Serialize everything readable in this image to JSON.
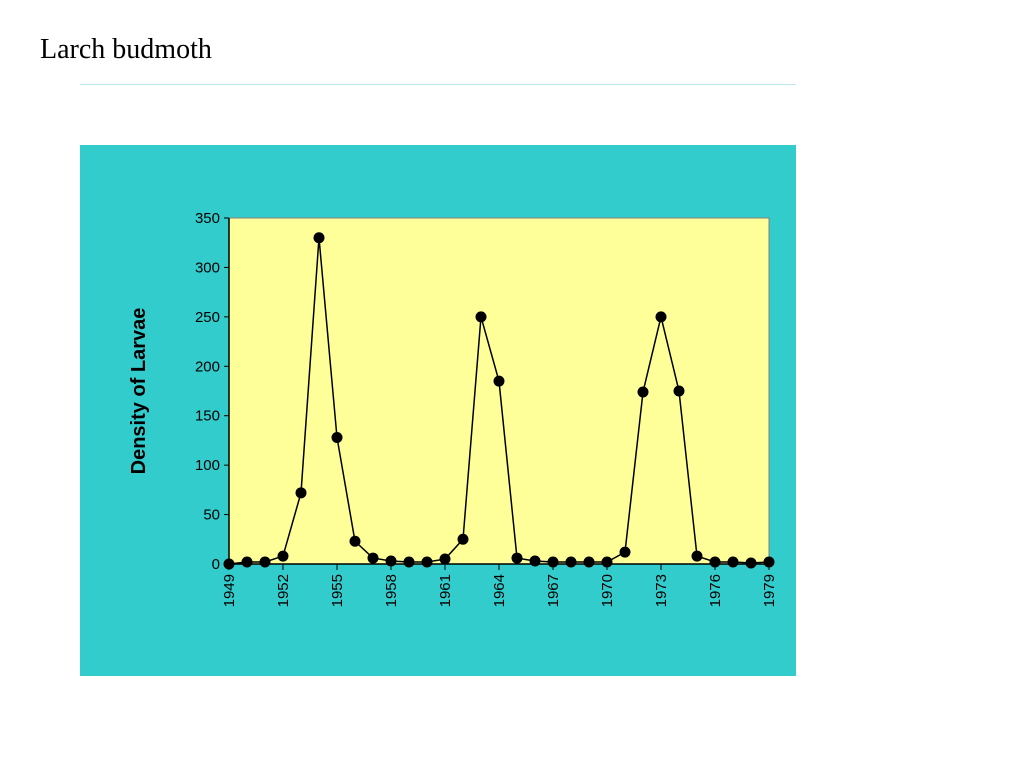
{
  "chart_data": {
    "type": "line",
    "title": "Larch budmoth",
    "ylabel": "Density of Larvae",
    "x": [
      1949,
      1950,
      1951,
      1952,
      1953,
      1954,
      1955,
      1956,
      1957,
      1958,
      1959,
      1960,
      1961,
      1962,
      1963,
      1964,
      1965,
      1966,
      1967,
      1968,
      1969,
      1970,
      1971,
      1972,
      1973,
      1974,
      1975,
      1976,
      1977,
      1978,
      1979
    ],
    "values": [
      0,
      2,
      2,
      8,
      72,
      330,
      128,
      23,
      6,
      3,
      2,
      2,
      5,
      25,
      250,
      185,
      6,
      3,
      2,
      2,
      2,
      2,
      12,
      174,
      250,
      175,
      8,
      2,
      2,
      1,
      2
    ],
    "color": "#000000",
    "xlim": [
      1949,
      1979
    ],
    "xticks": [
      1949,
      1952,
      1955,
      1958,
      1961,
      1964,
      1967,
      1970,
      1973,
      1976,
      1979
    ],
    "ylim": [
      0,
      350
    ],
    "yticks": [
      0,
      50,
      100,
      150,
      200,
      250,
      300,
      350
    ]
  }
}
